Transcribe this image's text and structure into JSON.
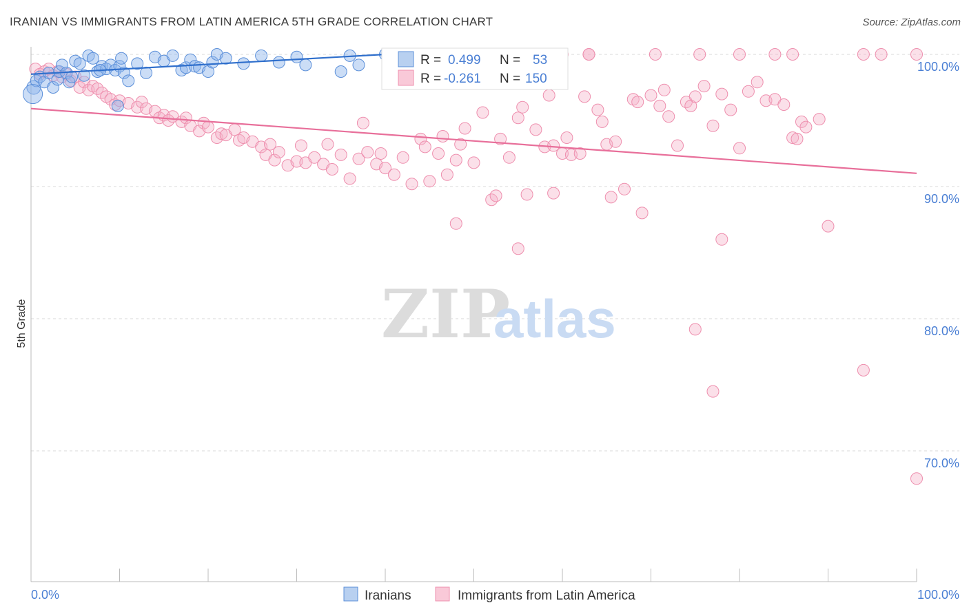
{
  "title": "IRANIAN VS IMMIGRANTS FROM LATIN AMERICA 5TH GRADE CORRELATION CHART",
  "source": "Source: ZipAtlas.com",
  "watermark": {
    "zip": "ZIP",
    "atlas": "atlas"
  },
  "chart_data": {
    "type": "scatter",
    "title": "IRANIAN VS IMMIGRANTS FROM LATIN AMERICA 5TH GRADE CORRELATION CHART",
    "xlabel": "",
    "ylabel": "5th Grade",
    "xlim": [
      0,
      100
    ],
    "ylim": [
      60.5,
      101.5
    ],
    "x_tick_labels": [
      "0.0%",
      "100.0%"
    ],
    "y_ticks": [
      {
        "value": 100,
        "label": "100.0%"
      },
      {
        "value": 90,
        "label": "90.0%"
      },
      {
        "value": 80,
        "label": "80.0%"
      },
      {
        "value": 70,
        "label": "70.0%"
      }
    ],
    "colors": {
      "iranians": "#5b8fd9",
      "latin": "#ee8fae",
      "iranians_line": "#2f6fcc",
      "latin_line": "#e86f9a"
    },
    "stats": [
      {
        "r_label": "R =",
        "r": "0.499",
        "n_label": "N =",
        "n": "53"
      },
      {
        "r_label": "R =",
        "r": "-0.261",
        "n_label": "N =",
        "n": "150"
      }
    ],
    "series": [
      {
        "name": "Iranians",
        "trend": [
          [
            0,
            98.5
          ],
          [
            40,
            100.0
          ]
        ],
        "points": [
          [
            0.3,
            97.5
          ],
          [
            0.6,
            98.0
          ],
          [
            1,
            98.3
          ],
          [
            1.5,
            97.9
          ],
          [
            2,
            98.6
          ],
          [
            2.5,
            97.5
          ],
          [
            3,
            98.1
          ],
          [
            3.2,
            98.7
          ],
          [
            3.5,
            99.2
          ],
          [
            4,
            98.6
          ],
          [
            4.3,
            97.9
          ],
          [
            4.6,
            98.3
          ],
          [
            5,
            99.5
          ],
          [
            5.5,
            99.3
          ],
          [
            6,
            98.4
          ],
          [
            6.5,
            99.9
          ],
          [
            7,
            99.7
          ],
          [
            7.5,
            98.7
          ],
          [
            8,
            99.1
          ],
          [
            8.5,
            98.9
          ],
          [
            9,
            99.2
          ],
          [
            9.5,
            98.8
          ],
          [
            10,
            99.1
          ],
          [
            10.5,
            98.6
          ],
          [
            11,
            98.0
          ],
          [
            10.2,
            99.7
          ],
          [
            12,
            99.3
          ],
          [
            13,
            98.6
          ],
          [
            14,
            99.8
          ],
          [
            15,
            99.5
          ],
          [
            16,
            99.9
          ],
          [
            17,
            98.8
          ],
          [
            17.5,
            99.0
          ],
          [
            18,
            99.6
          ],
          [
            18.5,
            99.1
          ],
          [
            19,
            99.0
          ],
          [
            20,
            98.7
          ],
          [
            20.5,
            99.4
          ],
          [
            21,
            100.0
          ],
          [
            22,
            99.7
          ],
          [
            24,
            99.3
          ],
          [
            26,
            99.9
          ],
          [
            28,
            99.4
          ],
          [
            30,
            99.8
          ],
          [
            31,
            99.2
          ],
          [
            35,
            98.7
          ],
          [
            36,
            99.9
          ],
          [
            37,
            99.2
          ],
          [
            40,
            100.0
          ],
          [
            44,
            100.0
          ],
          [
            0.2,
            97.0
          ],
          [
            7.8,
            98.8
          ],
          [
            9.8,
            96.1
          ]
        ]
      },
      {
        "name": "Immigrants from Latin America",
        "trend": [
          [
            0,
            95.9
          ],
          [
            100,
            91.0
          ]
        ],
        "points": [
          [
            0.5,
            98.9
          ],
          [
            1,
            98.5
          ],
          [
            1.5,
            98.7
          ],
          [
            2,
            98.9
          ],
          [
            2.5,
            98.4
          ],
          [
            3,
            98.7
          ],
          [
            3.5,
            98.3
          ],
          [
            4,
            98.5
          ],
          [
            4.5,
            98.0
          ],
          [
            5,
            98.3
          ],
          [
            5.5,
            97.5
          ],
          [
            6,
            97.9
          ],
          [
            6.5,
            97.3
          ],
          [
            7,
            97.6
          ],
          [
            7.5,
            97.4
          ],
          [
            8,
            97.1
          ],
          [
            8.5,
            96.8
          ],
          [
            9,
            96.6
          ],
          [
            9.5,
            96.2
          ],
          [
            10,
            96.5
          ],
          [
            11,
            96.3
          ],
          [
            12,
            96.0
          ],
          [
            12.5,
            96.4
          ],
          [
            13,
            95.9
          ],
          [
            14,
            95.7
          ],
          [
            14.5,
            95.2
          ],
          [
            15,
            95.4
          ],
          [
            15.5,
            95.0
          ],
          [
            16,
            95.3
          ],
          [
            17,
            94.9
          ],
          [
            17.5,
            95.2
          ],
          [
            18,
            94.6
          ],
          [
            19,
            94.2
          ],
          [
            19.5,
            94.8
          ],
          [
            20,
            94.5
          ],
          [
            21,
            93.7
          ],
          [
            21.5,
            94.0
          ],
          [
            22,
            93.9
          ],
          [
            23,
            94.3
          ],
          [
            23.5,
            93.5
          ],
          [
            24,
            93.7
          ],
          [
            25,
            93.4
          ],
          [
            26,
            93.0
          ],
          [
            26.5,
            92.4
          ],
          [
            27,
            93.2
          ],
          [
            27.5,
            92.0
          ],
          [
            28,
            92.6
          ],
          [
            29,
            91.6
          ],
          [
            30,
            91.9
          ],
          [
            30.5,
            93.1
          ],
          [
            31,
            91.8
          ],
          [
            32,
            92.2
          ],
          [
            33,
            91.7
          ],
          [
            33.5,
            93.2
          ],
          [
            34,
            91.3
          ],
          [
            35,
            92.4
          ],
          [
            36,
            90.6
          ],
          [
            37,
            92.1
          ],
          [
            37.5,
            94.8
          ],
          [
            38,
            92.6
          ],
          [
            39,
            91.7
          ],
          [
            39.5,
            92.5
          ],
          [
            40,
            91.4
          ],
          [
            41,
            90.9
          ],
          [
            42,
            92.2
          ],
          [
            43,
            90.2
          ],
          [
            44,
            93.6
          ],
          [
            44.5,
            93.0
          ],
          [
            45,
            90.4
          ],
          [
            46,
            92.5
          ],
          [
            46.5,
            93.8
          ],
          [
            47,
            90.9
          ],
          [
            48,
            92.0
          ],
          [
            48.5,
            93.2
          ],
          [
            49,
            94.4
          ],
          [
            50,
            91.8
          ],
          [
            51,
            95.6
          ],
          [
            52,
            89.0
          ],
          [
            52.5,
            89.3
          ],
          [
            53,
            93.6
          ],
          [
            54,
            92.2
          ],
          [
            55,
            95.2
          ],
          [
            55.5,
            96.0
          ],
          [
            56,
            89.4
          ],
          [
            57,
            94.3
          ],
          [
            58,
            93.0
          ],
          [
            58.5,
            96.9
          ],
          [
            59,
            93.1
          ],
          [
            60,
            92.5
          ],
          [
            60.5,
            93.7
          ],
          [
            61,
            92.4
          ],
          [
            62,
            92.5
          ],
          [
            62.5,
            96.8
          ],
          [
            63,
            100.0
          ],
          [
            64,
            95.8
          ],
          [
            64.5,
            94.9
          ],
          [
            65,
            93.2
          ],
          [
            65.5,
            89.2
          ],
          [
            66,
            93.4
          ],
          [
            67,
            89.8
          ],
          [
            68,
            96.6
          ],
          [
            68.5,
            96.4
          ],
          [
            69,
            88.0
          ],
          [
            70,
            96.9
          ],
          [
            71,
            96.1
          ],
          [
            71.5,
            97.3
          ],
          [
            72,
            95.3
          ],
          [
            73,
            93.1
          ],
          [
            74,
            96.4
          ],
          [
            74.5,
            96.1
          ],
          [
            75,
            96.8
          ],
          [
            76,
            97.6
          ],
          [
            77,
            94.6
          ],
          [
            78,
            97.0
          ],
          [
            79,
            95.8
          ],
          [
            80,
            92.9
          ],
          [
            81,
            97.2
          ],
          [
            82,
            97.9
          ],
          [
            83,
            96.5
          ],
          [
            84,
            96.6
          ],
          [
            85,
            96.2
          ],
          [
            86,
            93.7
          ],
          [
            86.5,
            93.6
          ],
          [
            87,
            94.9
          ],
          [
            87.5,
            94.5
          ],
          [
            89,
            95.1
          ],
          [
            63,
            100.0
          ],
          [
            70.5,
            100.0
          ],
          [
            75.5,
            100.0
          ],
          [
            80,
            100.0
          ],
          [
            84,
            100.0
          ],
          [
            94,
            100.0
          ],
          [
            96,
            100.0
          ],
          [
            100,
            100.0
          ],
          [
            55,
            85.3
          ],
          [
            59,
            89.5
          ],
          [
            60,
            100.0
          ],
          [
            78,
            86.0
          ],
          [
            75,
            79.2
          ],
          [
            77,
            74.5
          ],
          [
            94,
            76.1
          ],
          [
            100,
            67.9
          ],
          [
            48,
            87.2
          ],
          [
            86,
            100.0
          ],
          [
            90,
            87.0
          ],
          [
            58,
            100.0
          ]
        ]
      }
    ]
  },
  "legend": {
    "items": [
      {
        "label": "Iranians"
      },
      {
        "label": "Immigrants from Latin America"
      }
    ]
  }
}
